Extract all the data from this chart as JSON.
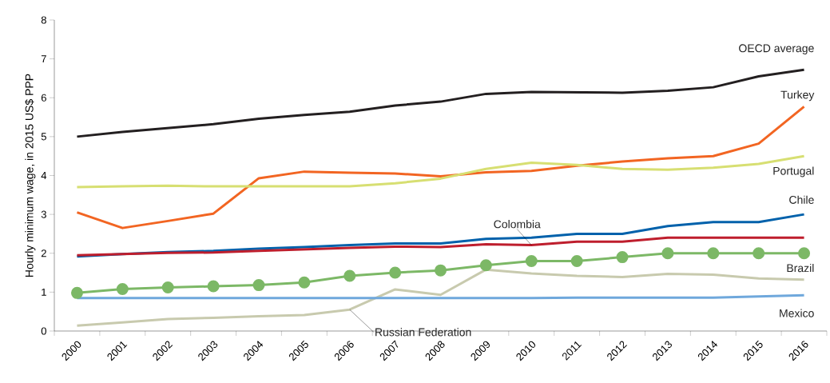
{
  "chart_data": {
    "type": "line",
    "ylabel": "Hourly minimum wage, in 2015 US$ PPP",
    "categories": [
      "2000",
      "2001",
      "2002",
      "2003",
      "2004",
      "2005",
      "2006",
      "2007",
      "2008",
      "2009",
      "2010",
      "2011",
      "2012",
      "2013",
      "2014",
      "2015",
      "2016"
    ],
    "ylim": [
      0,
      8
    ],
    "yticks": [
      0,
      1,
      2,
      3,
      4,
      5,
      6,
      7,
      8
    ],
    "grid": false,
    "legend": false,
    "series": [
      {
        "name": "OECD average",
        "color": "#231f20",
        "values": [
          5.0,
          5.12,
          5.22,
          5.32,
          5.46,
          5.56,
          5.64,
          5.8,
          5.9,
          6.1,
          6.15,
          6.14,
          6.13,
          6.18,
          6.27,
          6.55,
          6.72
        ]
      },
      {
        "name": "Turkey",
        "color": "#f26522",
        "values": [
          3.05,
          2.65,
          2.83,
          3.02,
          3.93,
          4.1,
          4.07,
          4.05,
          3.98,
          4.08,
          4.12,
          4.25,
          4.36,
          4.44,
          4.5,
          4.82,
          5.77
        ]
      },
      {
        "name": "Portugal",
        "color": "#d7df72",
        "values": [
          3.7,
          3.72,
          3.74,
          3.72,
          3.72,
          3.72,
          3.72,
          3.8,
          3.92,
          4.17,
          4.33,
          4.27,
          4.17,
          4.15,
          4.2,
          4.3,
          4.5
        ]
      },
      {
        "name": "Chile",
        "color": "#0061ab",
        "values": [
          1.92,
          1.98,
          2.03,
          2.06,
          2.12,
          2.16,
          2.21,
          2.25,
          2.25,
          2.37,
          2.4,
          2.5,
          2.5,
          2.7,
          2.8,
          2.8,
          3.0
        ]
      },
      {
        "name": "Colombia",
        "color": "#be1e2d",
        "values": [
          1.95,
          1.98,
          2.01,
          2.02,
          2.06,
          2.1,
          2.14,
          2.17,
          2.16,
          2.23,
          2.21,
          2.3,
          2.3,
          2.4,
          2.4,
          2.4,
          2.4
        ]
      },
      {
        "name": "Brazil",
        "color": "#7cb866",
        "marker": "circle",
        "values": [
          0.98,
          1.08,
          1.12,
          1.15,
          1.18,
          1.25,
          1.42,
          1.5,
          1.56,
          1.69,
          1.8,
          1.8,
          1.9,
          2.0,
          2.0,
          2.0,
          2.0
        ]
      },
      {
        "name": "Russian Federation",
        "color": "#c8caae",
        "values": [
          0.14,
          0.22,
          0.31,
          0.34,
          0.38,
          0.41,
          0.55,
          1.07,
          0.93,
          1.58,
          1.48,
          1.42,
          1.39,
          1.47,
          1.45,
          1.35,
          1.32
        ]
      },
      {
        "name": "Mexico",
        "color": "#6fa8dc",
        "values": [
          0.85,
          0.85,
          0.85,
          0.85,
          0.85,
          0.85,
          0.85,
          0.85,
          0.85,
          0.85,
          0.85,
          0.86,
          0.86,
          0.86,
          0.86,
          0.89,
          0.92
        ]
      }
    ]
  }
}
